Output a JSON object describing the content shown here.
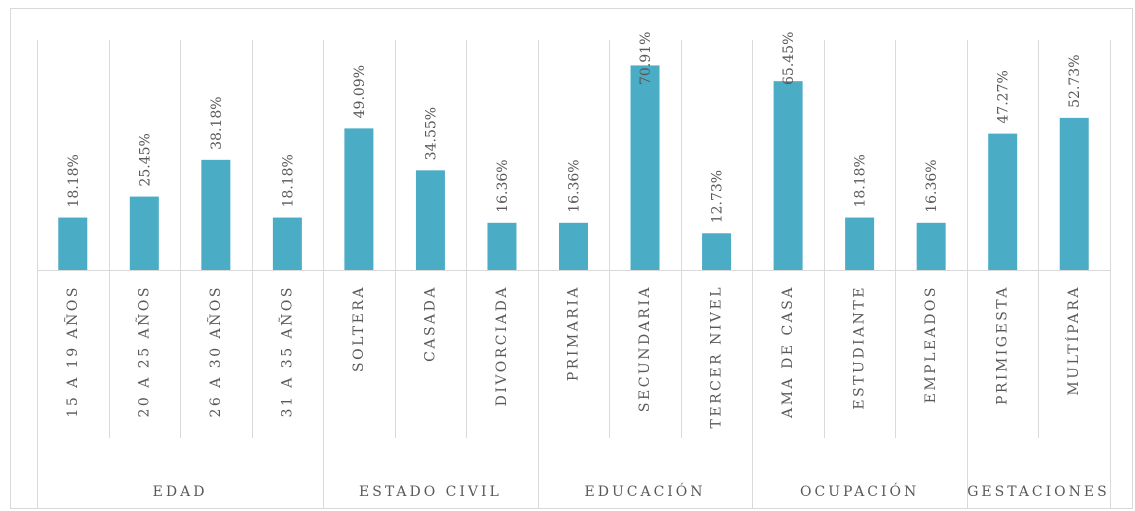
{
  "chart_data": {
    "type": "bar",
    "categories": [
      "15 A 19 AÑOS",
      "20 A 25 AÑOS",
      "26 A 30 AÑOS",
      "31 A 35 AÑOS",
      "SOLTERA",
      "CASADA",
      "DIVORCIADA",
      "PRIMARIA",
      "SECUNDARIA",
      "TERCER NIVEL",
      "AMA DE CASA",
      "ESTUDIANTE",
      "EMPLEADOS",
      "PRIMIGESTA",
      "MULTÍPARA"
    ],
    "groups": [
      {
        "name": "EDAD",
        "count": 4
      },
      {
        "name": "ESTADO CIVIL",
        "count": 3
      },
      {
        "name": "EDUCACIÓN",
        "count": 3
      },
      {
        "name": "OCUPACIÓN",
        "count": 3
      },
      {
        "name": "GESTACIONES",
        "count": 2
      }
    ],
    "values": [
      18.18,
      25.45,
      38.18,
      18.18,
      49.09,
      34.55,
      16.36,
      16.36,
      70.91,
      12.73,
      65.45,
      18.18,
      16.36,
      47.27,
      52.73
    ],
    "value_labels": [
      "18.18%",
      "25.45%",
      "38.18%",
      "18.18%",
      "49.09%",
      "34.55%",
      "16.36%",
      "16.36%",
      "70.91%",
      "12.73%",
      "65.45%",
      "18.18%",
      "16.36%",
      "47.27%",
      "52.73%"
    ],
    "color": "#4bacc6"
  }
}
